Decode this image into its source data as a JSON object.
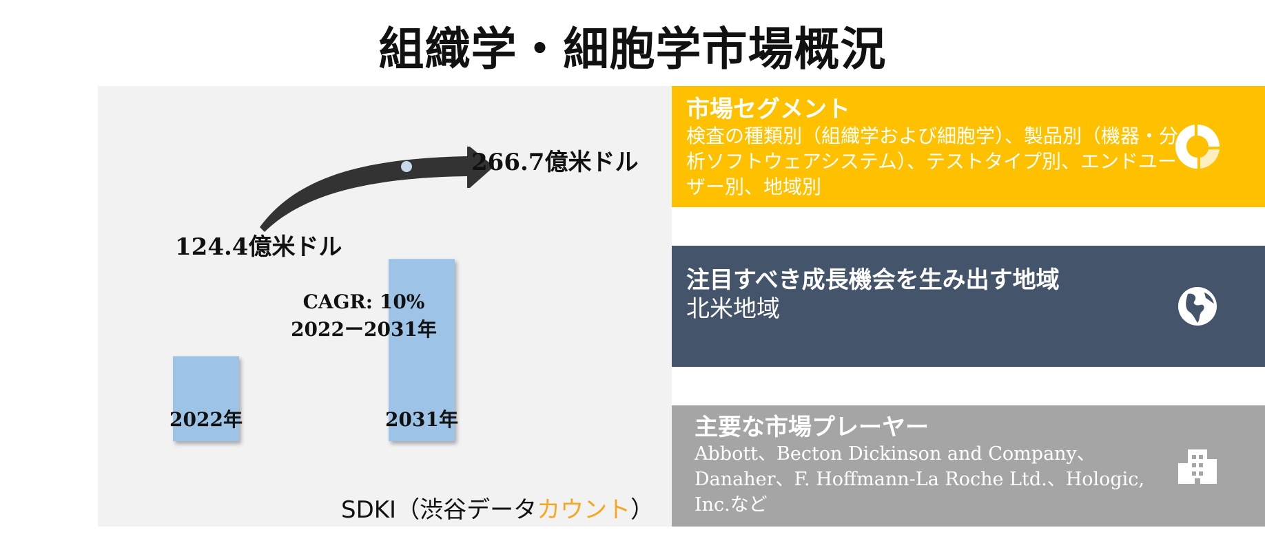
{
  "page": {
    "title": "組織学・細胞学市場概況"
  },
  "chart_data": {
    "type": "bar",
    "categories": [
      "2022年",
      "2031年"
    ],
    "values": [
      124.4,
      266.7
    ],
    "value_labels": [
      "124.4億米ドル",
      "266.7億米ドル"
    ],
    "ylim": [
      0,
      300
    ],
    "grid": false,
    "annotation": {
      "cagr": "CAGR: 10%",
      "period": "2022ー2031年"
    },
    "bar_color": "#9dc3e6",
    "arrow_color": "#333333"
  },
  "source": {
    "prefix": "SDKI（渋谷データ",
    "accent": "カウント",
    "suffix": "）",
    "accent_color": "#f5a623"
  },
  "segments_box": {
    "title": "市場セグメント",
    "text": "検査の種類別（組織学および細胞学）、製品別（機器・分析ソフトウェアシステム）、テストタイプ別、エンドユーザー別、地域別",
    "icon": "donut-chart-icon",
    "color": "#ffc000"
  },
  "region_box": {
    "title": "注目すべき成長機会を生み出す地域",
    "text": "北米地域",
    "icon": "globe-icon",
    "color": "#44546a"
  },
  "players_box": {
    "title": "主要な市場プレーヤー",
    "text": "Abbott、Becton Dickinson and Company、Danaher、F. Hoffmann-La Roche Ltd.、Hologic, Inc.など",
    "icon": "building-icon",
    "color": "#a5a5a5"
  }
}
